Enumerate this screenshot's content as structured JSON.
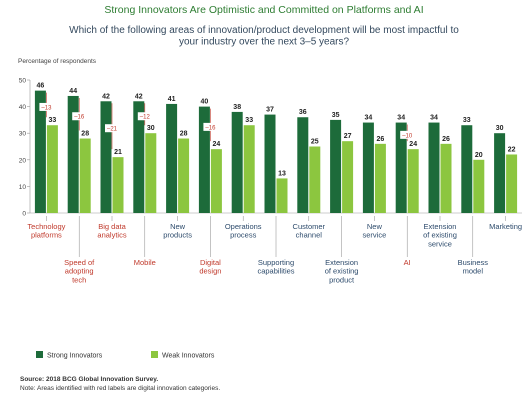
{
  "chart_data": {
    "type": "bar",
    "title": "Strong Innovators Are Optimistic and Committed on Platforms and AI",
    "subtitle": "Which of the following areas of innovation/product development will be most impactful to\nyour industry over the next 3–5 years?",
    "y_label": "Percentage of respondents",
    "categories": [
      "Technology\nplatforms",
      "Speed of\nadopting\ntech",
      "Big data\nanalytics",
      "Mobile",
      "New\nproducts",
      "Digital\ndesign",
      "Operations\nprocess",
      "Supporting\ncapabilities",
      "Customer\nchannel",
      "Extension\nof existing\nproduct",
      "New\nservice",
      "AI",
      "Extension\nof existing\nservice",
      "Business\nmodel",
      "Marketing"
    ],
    "category_label_colors": [
      "#c0392b",
      "#c0392b",
      "#c0392b",
      "#c0392b",
      "#2c4a6b",
      "#c0392b",
      "#2c4a6b",
      "#2c4a6b",
      "#2c4a6b",
      "#2c4a6b",
      "#2c4a6b",
      "#c0392b",
      "#2c4a6b",
      "#2c4a6b",
      "#2c4a6b"
    ],
    "series": [
      {
        "name": "Strong Innovators",
        "color": "#1d6b3a",
        "values": [
          46,
          44,
          42,
          42,
          41,
          40,
          38,
          37,
          36,
          35,
          34,
          34,
          34,
          33,
          30
        ]
      },
      {
        "name": "Weak Innovators",
        "color": "#8cc63f",
        "values": [
          33,
          28,
          21,
          30,
          28,
          24,
          33,
          13,
          25,
          27,
          26,
          24,
          26,
          20,
          22
        ]
      }
    ],
    "annotations": [
      {
        "category": 0,
        "text": "–13"
      },
      {
        "category": 1,
        "text": "–16"
      },
      {
        "category": 2,
        "text": "–21"
      },
      {
        "category": 3,
        "text": "–12"
      },
      {
        "category": 5,
        "text": "–16"
      },
      {
        "category": 11,
        "text": "–10"
      }
    ],
    "ylim": [
      0,
      50
    ],
    "yticks": [
      0,
      10,
      20,
      30,
      40,
      50
    ],
    "grid": false,
    "source": "Source: 2018 BCG Global Innovation Survey.",
    "note": "Note: Areas identified with red labels are digital innovation categories."
  }
}
